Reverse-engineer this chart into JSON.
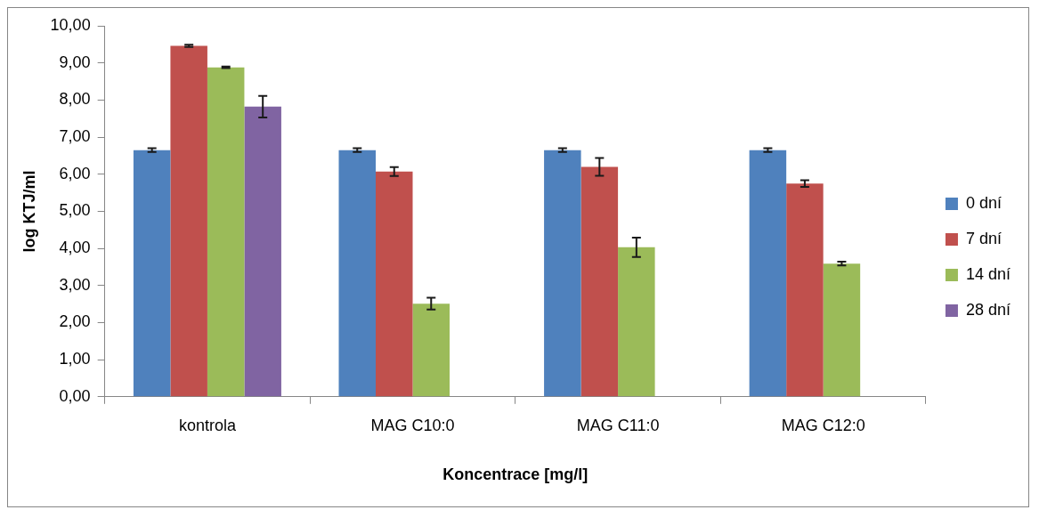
{
  "chart_data": {
    "type": "bar",
    "xlabel": "Koncentrace [mg/l]",
    "ylabel": "log KTJ/ml",
    "categories": [
      "kontrola",
      "MAG C10:0",
      "MAG C11:0",
      "MAG C12:0"
    ],
    "series": [
      {
        "name": "0 dní",
        "color": "#4f81bd",
        "values": [
          6.65,
          6.65,
          6.65,
          6.65
        ],
        "errors": [
          0.05,
          0.05,
          0.05,
          0.05
        ]
      },
      {
        "name": "7 dní",
        "color": "#c0504d",
        "values": [
          9.46,
          6.07,
          6.2,
          5.75
        ],
        "errors": [
          0.03,
          0.12,
          0.24,
          0.09
        ]
      },
      {
        "name": "14 dní",
        "color": "#9bbb59",
        "values": [
          8.88,
          2.51,
          4.03,
          3.59
        ],
        "errors": [
          0.02,
          0.16,
          0.26,
          0.05
        ]
      },
      {
        "name": "28 dní",
        "color": "#8064a2",
        "values": [
          7.82,
          0,
          0,
          0
        ],
        "errors": [
          0.29,
          null,
          null,
          null
        ]
      }
    ],
    "ylim": [
      0,
      10
    ],
    "yticks": [
      {
        "value": 0,
        "label": "0,00"
      },
      {
        "value": 1,
        "label": "1,00"
      },
      {
        "value": 2,
        "label": "2,00"
      },
      {
        "value": 3,
        "label": "3,00"
      },
      {
        "value": 4,
        "label": "4,00"
      },
      {
        "value": 5,
        "label": "5,00"
      },
      {
        "value": 6,
        "label": "6,00"
      },
      {
        "value": 7,
        "label": "7,00"
      },
      {
        "value": 8,
        "label": "8,00"
      },
      {
        "value": 9,
        "label": "9,00"
      },
      {
        "value": 10,
        "label": "10,00"
      }
    ],
    "grid": false,
    "legend": "right"
  }
}
